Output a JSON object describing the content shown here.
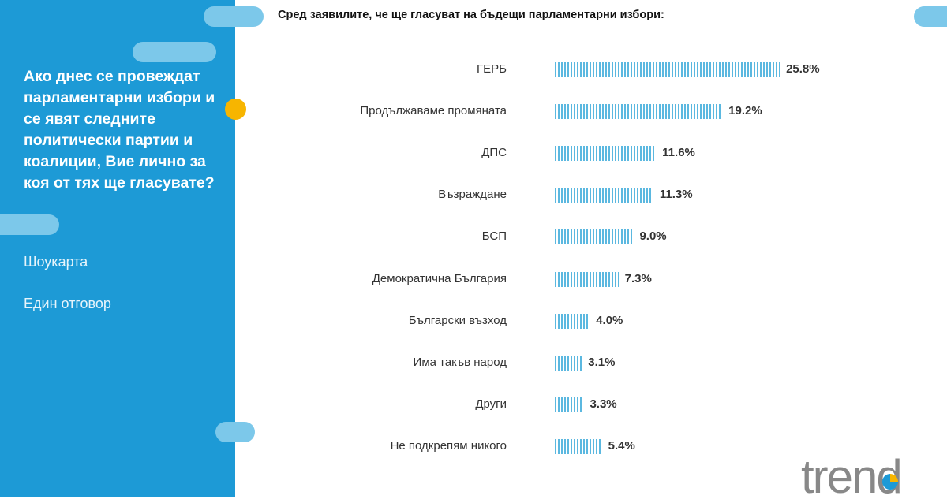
{
  "sidebar": {
    "question": "Ако днес се провеждат парламентарни избори и се явят следните политически партии и коалиции, Вие лично за коя от тях ще гласувате?",
    "note1": "Шоукарта",
    "note2": "Един отговор"
  },
  "logo": "trend",
  "chart_data": {
    "type": "bar",
    "orientation": "horizontal",
    "title": "Сред заявилите, че ще гласуват на бъдещи парламентарни избори:",
    "categories": [
      "ГЕРБ",
      "Продължаваме промяната",
      "ДПС",
      "Възраждане",
      "БСП",
      "Демократична България",
      "Български възход",
      "Има такъв народ",
      "Други",
      "Не подкрепям никого"
    ],
    "values": [
      25.8,
      19.2,
      11.6,
      11.3,
      9.0,
      7.3,
      4.0,
      3.1,
      3.3,
      5.4
    ],
    "labels": [
      "25.8%",
      "19.2%",
      "11.6%",
      "11.3%",
      "9.0%",
      "7.3%",
      "4.0%",
      "3.1%",
      "3.3%",
      "5.4%"
    ],
    "bar_color": "#5bb8e0"
  },
  "colors": {
    "panel": "#1d9ad6",
    "accent": "#f7b500"
  }
}
